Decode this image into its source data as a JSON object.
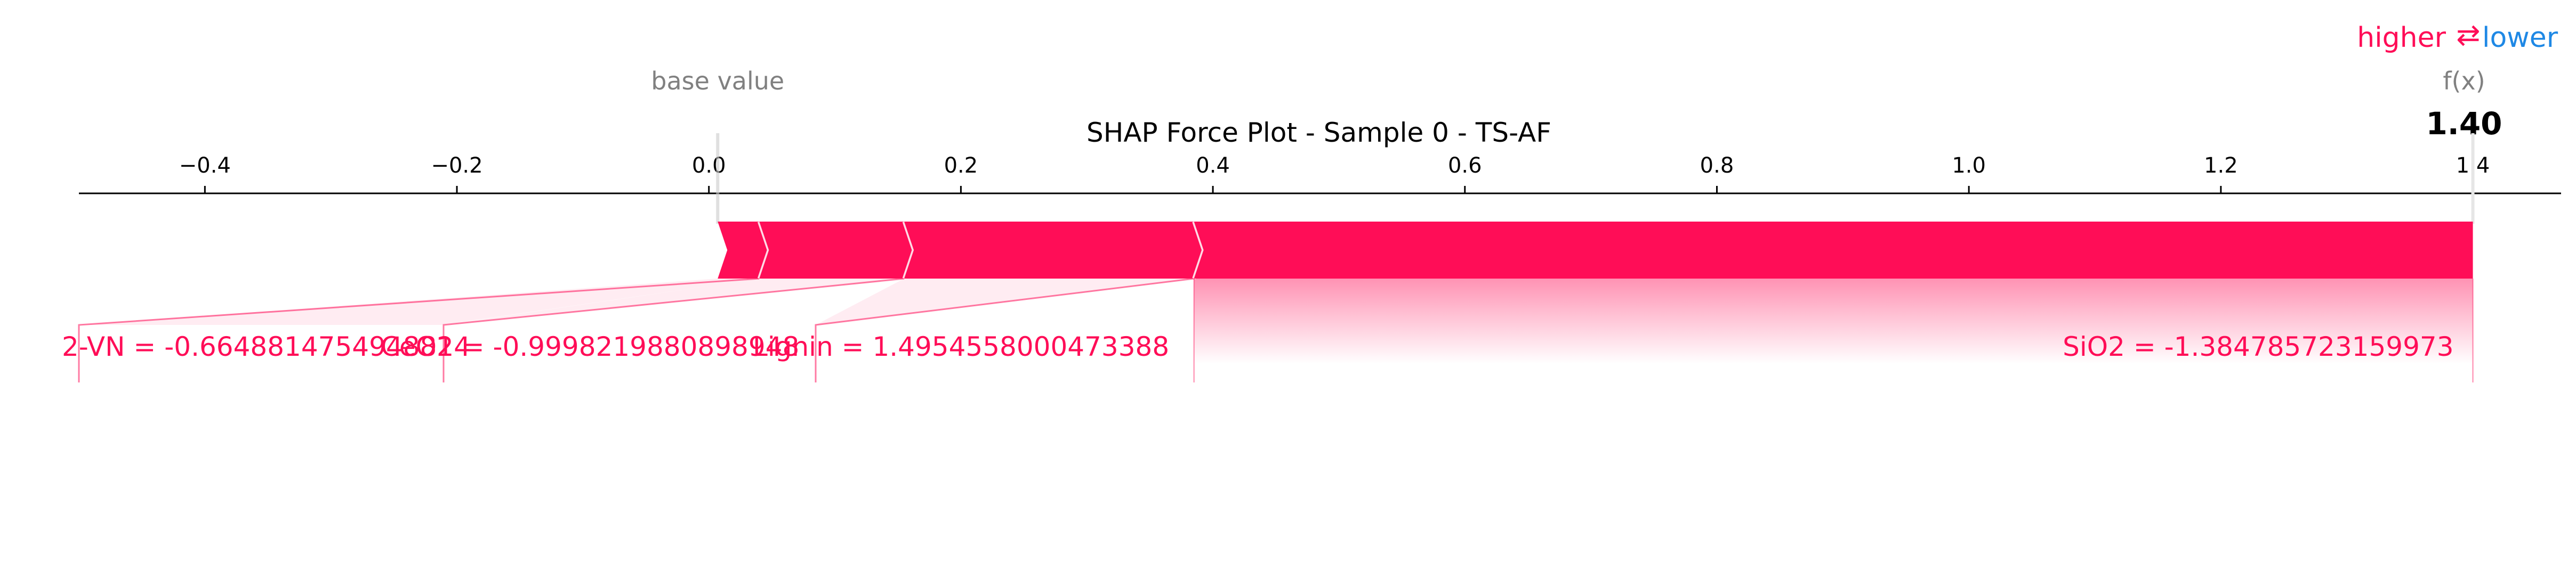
{
  "chart_data": {
    "type": "force",
    "title": "SHAP Force Plot - Sample 0 - TS-AF",
    "legend": {
      "higher_label": "higher",
      "arrows": "⇄",
      "lower_label": "lower"
    },
    "base_value_label": "base value",
    "base_value": 0.007,
    "output_label": "f(x)",
    "output_value": 1.4,
    "output_value_text": "1.40",
    "xlim": [
      -0.5,
      1.47
    ],
    "x_ticks": [
      -0.4,
      -0.2,
      0.0,
      0.2,
      0.4,
      0.6,
      0.8,
      1.0,
      1.2,
      1.4
    ],
    "x_tick_labels": [
      "−0.4",
      "−0.2",
      "0.0",
      "0.2",
      "0.4",
      "0.6",
      "0.8",
      "1.0",
      "1.2",
      "1.4"
    ],
    "features": [
      {
        "label": "2-VN = -0.6648814754948814",
        "start": 0.007,
        "end": 0.04
      },
      {
        "label": "CeO2 = -0.9998219880898948",
        "start": 0.04,
        "end": 0.155
      },
      {
        "label": "Lignin = 1.4954558000473388",
        "start": 0.155,
        "end": 0.385
      },
      {
        "label": "SiO2 = -1.384785723159973",
        "start": 0.385,
        "end": 1.4
      }
    ],
    "colors": {
      "positive": "#ff0d57",
      "negative": "#1e88e5",
      "axis": "#000000",
      "muted": "#808080"
    }
  }
}
